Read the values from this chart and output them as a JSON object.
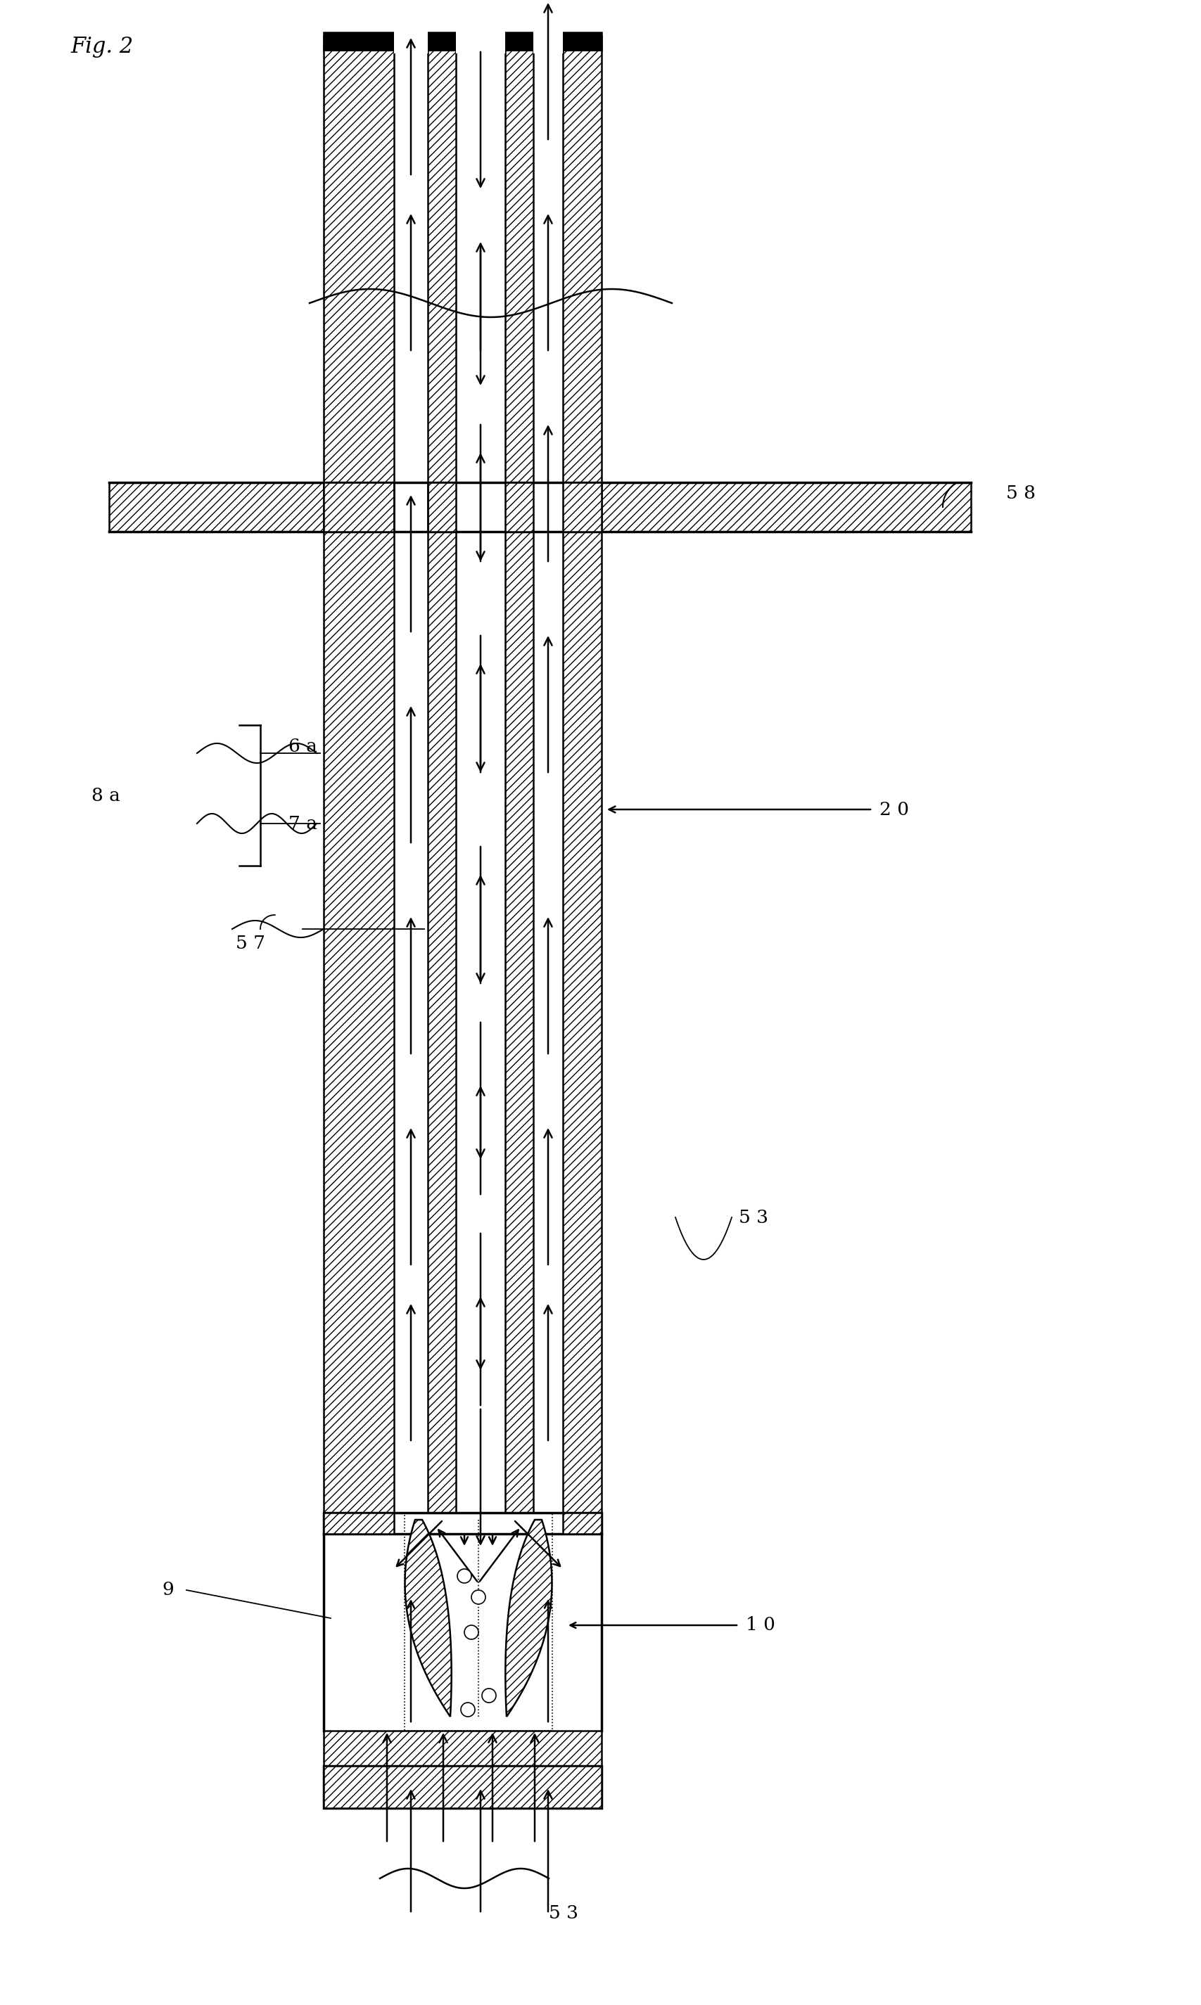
{
  "labels": {
    "fig2": "Fig. 2",
    "label_8a": "8 a",
    "label_6a": "6 a",
    "label_7a": "7 a",
    "label_57": "5 7",
    "label_58": "5 8",
    "label_20": "2 0",
    "label_53": "5 3",
    "label_9": "9",
    "label_10": "1 0"
  },
  "bg_color": "#ffffff"
}
